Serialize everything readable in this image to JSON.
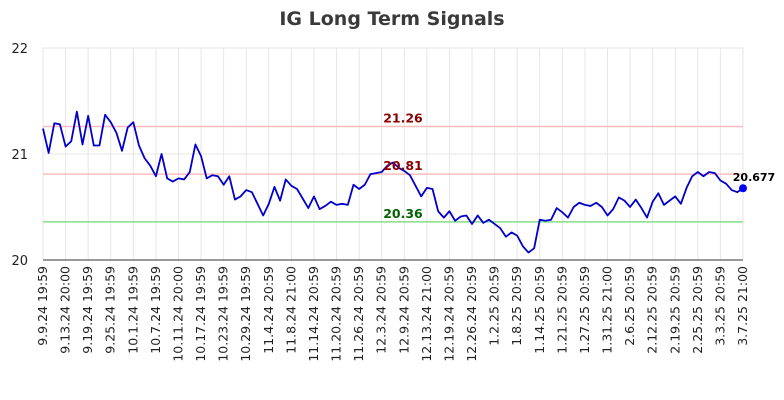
{
  "chart_data": {
    "type": "line",
    "title": "IG Long Term Signals",
    "xlabel": "",
    "ylabel": "",
    "ylim": [
      20,
      22
    ],
    "y_ticks": [
      "20",
      "21",
      "22"
    ],
    "grid": true,
    "x_tick_labels": [
      "9.9.24 19:59",
      "9.13.24 20:00",
      "9.19.24 19:59",
      "9.25.24 19:59",
      "10.1.24 19:59",
      "10.7.24 19:59",
      "10.11.24 20:00",
      "10.17.24 19:59",
      "10.23.24 19:59",
      "10.29.24 19:59",
      "11.4.24 20:59",
      "11.8.24 21:00",
      "11.14.24 20:59",
      "11.20.24 20:59",
      "11.26.24 20:59",
      "12.3.24 20:59",
      "12.9.24 20:59",
      "12.13.24 21:00",
      "12.19.24 20:59",
      "12.26.24 20:59",
      "1.2.25 20:59",
      "1.8.25 20:59",
      "1.14.25 20:59",
      "1.21.25 20:59",
      "1.27.25 20:59",
      "1.31.25 21:00",
      "2.6.25 20:59",
      "2.12.25 20:59",
      "2.19.25 20:59",
      "2.25.25 20:59",
      "3.3.25 20:59",
      "3.7.25 21:00"
    ],
    "series": [
      {
        "color": "#0000cc",
        "values": [
          21.24,
          21.01,
          21.29,
          21.28,
          21.07,
          21.12,
          21.4,
          21.09,
          21.36,
          21.08,
          21.08,
          21.37,
          21.3,
          21.2,
          21.03,
          21.25,
          21.3,
          21.08,
          20.96,
          20.89,
          20.79,
          21.0,
          20.77,
          20.74,
          20.77,
          20.76,
          20.83,
          21.09,
          20.98,
          20.77,
          20.8,
          20.79,
          20.71,
          20.79,
          20.57,
          20.6,
          20.66,
          20.64,
          20.53,
          20.42,
          20.53,
          20.69,
          20.56,
          20.76,
          20.7,
          20.67,
          20.58,
          20.49,
          20.6,
          20.48,
          20.51,
          20.55,
          20.52,
          20.53,
          20.52,
          20.71,
          20.67,
          20.71,
          20.81,
          20.82,
          20.83,
          20.89,
          20.92,
          20.87,
          20.84,
          20.8,
          20.7,
          20.6,
          20.68,
          20.67,
          20.46,
          20.4,
          20.46,
          20.37,
          20.41,
          20.42,
          20.34,
          20.42,
          20.35,
          20.38,
          20.34,
          20.3,
          20.22,
          20.26,
          20.23,
          20.13,
          20.07,
          20.11,
          20.38,
          20.37,
          20.38,
          20.49,
          20.45,
          20.4,
          20.5,
          20.54,
          20.52,
          20.51,
          20.54,
          20.5,
          20.42,
          20.48,
          20.59,
          20.56,
          20.5,
          20.57,
          20.49,
          20.4,
          20.55,
          20.63,
          20.52,
          20.56,
          20.6,
          20.53,
          20.68,
          20.79,
          20.83,
          20.79,
          20.83,
          20.82,
          20.75,
          20.72,
          20.66,
          20.64,
          20.677
        ]
      }
    ],
    "reference_lines": [
      {
        "value": 21.26,
        "label": "21.26",
        "line_color": "#ffbbbb",
        "text_color": "#8b0000"
      },
      {
        "value": 20.81,
        "label": "20.81",
        "line_color": "#ffbbbb",
        "text_color": "#8b0000"
      },
      {
        "value": 20.36,
        "label": "20.36",
        "line_color": "#88dd88",
        "text_color": "#006400"
      }
    ],
    "last_value_label": "20.677",
    "last_point_color": "#0000ff"
  }
}
